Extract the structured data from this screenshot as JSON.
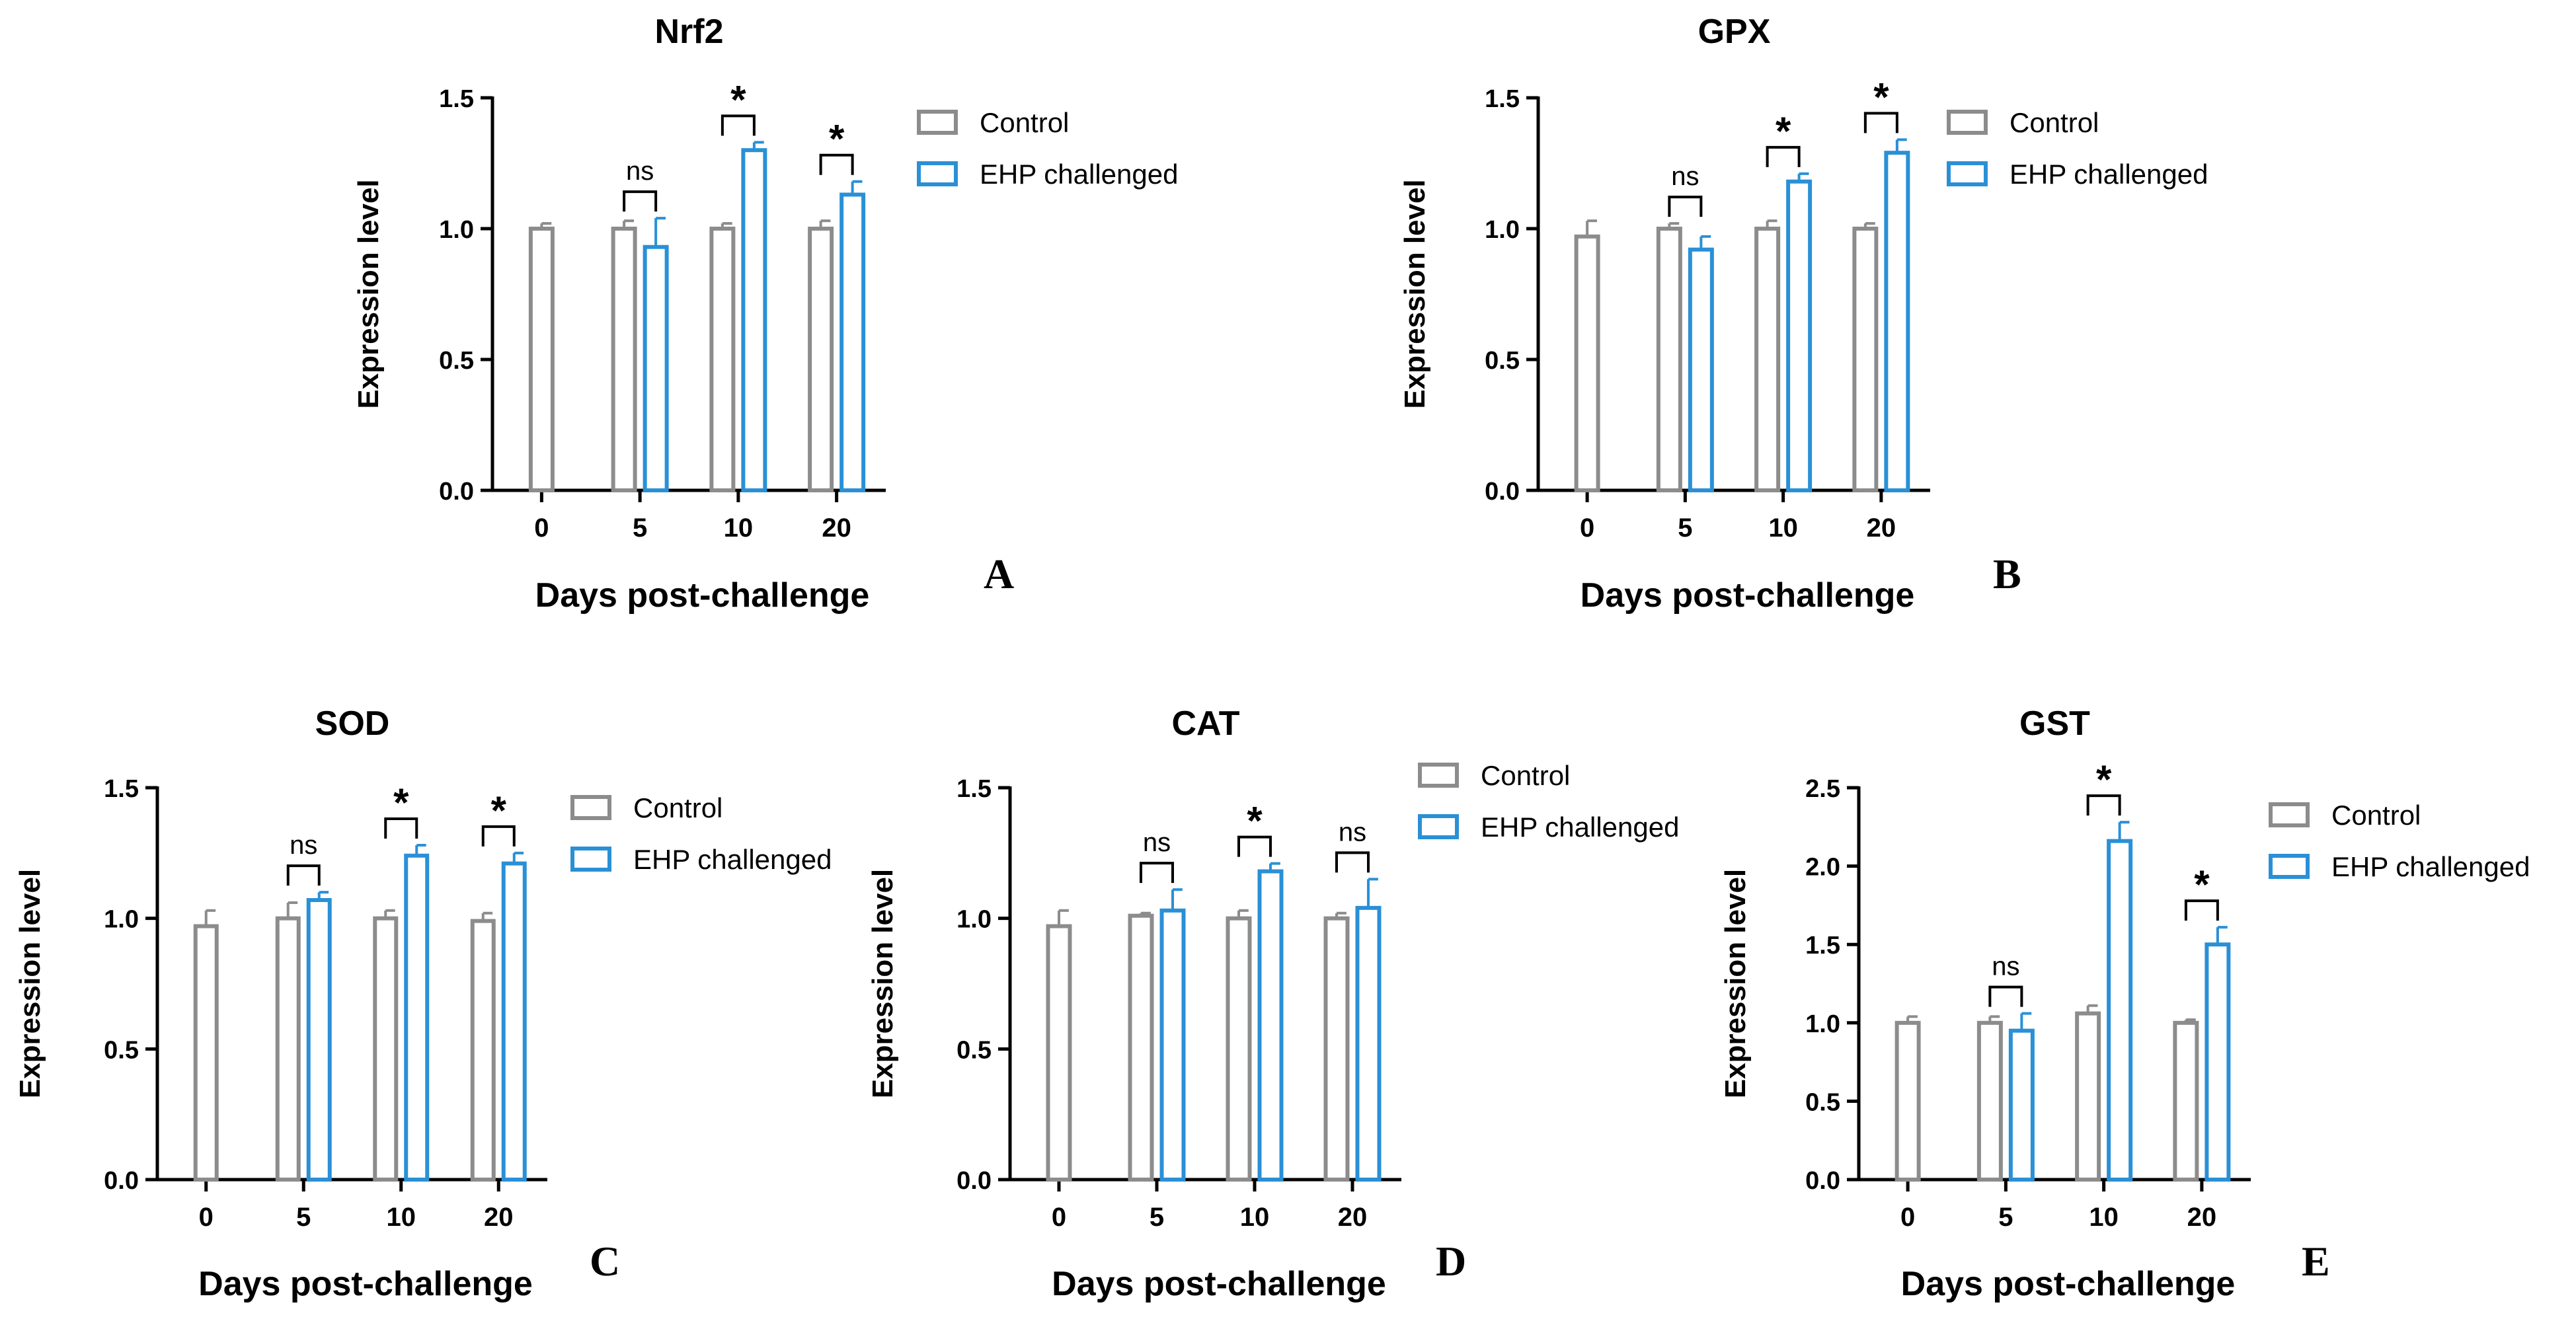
{
  "colors": {
    "control": "#8c8c8c",
    "ehp": "#2a90d6",
    "axis": "#000000",
    "background": "#ffffff"
  },
  "chart_data": [
    {
      "type": "bar",
      "title": "Nrf2",
      "panel_label": "A",
      "xlabel": "Days post-challenge",
      "ylabel": "Expression level",
      "ylim": [
        0,
        1.5
      ],
      "yticks": [
        "0.0",
        "0.5",
        "1.0",
        "1.5"
      ],
      "categories": [
        "0",
        "5",
        "10",
        "20"
      ],
      "legend": [
        "Control",
        "EHP challenged"
      ],
      "series": [
        {
          "name": "Control",
          "values": [
            1.0,
            1.0,
            1.0,
            1.0
          ],
          "errors": [
            0.02,
            0.03,
            0.02,
            0.03
          ]
        },
        {
          "name": "EHP challenged",
          "values": [
            null,
            0.93,
            1.3,
            1.13
          ],
          "errors": [
            null,
            0.11,
            0.03,
            0.05
          ]
        }
      ],
      "significance": [
        {
          "category": "5",
          "label": "ns"
        },
        {
          "category": "10",
          "label": "*"
        },
        {
          "category": "20",
          "label": "*"
        }
      ]
    },
    {
      "type": "bar",
      "title": "GPX",
      "panel_label": "B",
      "xlabel": "Days post-challenge",
      "ylabel": "Expression level",
      "ylim": [
        0,
        1.5
      ],
      "yticks": [
        "0.0",
        "0.5",
        "1.0",
        "1.5"
      ],
      "categories": [
        "0",
        "5",
        "10",
        "20"
      ],
      "legend": [
        "Control",
        "EHP challenged"
      ],
      "series": [
        {
          "name": "Control",
          "values": [
            0.97,
            1.0,
            1.0,
            1.0
          ],
          "errors": [
            0.06,
            0.02,
            0.03,
            0.02
          ]
        },
        {
          "name": "EHP challenged",
          "values": [
            null,
            0.92,
            1.18,
            1.29
          ],
          "errors": [
            null,
            0.05,
            0.03,
            0.05
          ]
        }
      ],
      "significance": [
        {
          "category": "5",
          "label": "ns"
        },
        {
          "category": "10",
          "label": "*"
        },
        {
          "category": "20",
          "label": "*"
        }
      ]
    },
    {
      "type": "bar",
      "title": "SOD",
      "panel_label": "C",
      "xlabel": "Days post-challenge",
      "ylabel": "Expression level",
      "ylim": [
        0,
        1.5
      ],
      "yticks": [
        "0.0",
        "0.5",
        "1.0",
        "1.5"
      ],
      "categories": [
        "0",
        "5",
        "10",
        "20"
      ],
      "legend": [
        "Control",
        "EHP challenged"
      ],
      "series": [
        {
          "name": "Control",
          "values": [
            0.97,
            1.0,
            1.0,
            0.99
          ],
          "errors": [
            0.06,
            0.06,
            0.03,
            0.03
          ]
        },
        {
          "name": "EHP challenged",
          "values": [
            null,
            1.07,
            1.24,
            1.21
          ],
          "errors": [
            null,
            0.03,
            0.04,
            0.04
          ]
        }
      ],
      "significance": [
        {
          "category": "5",
          "label": "ns"
        },
        {
          "category": "10",
          "label": "*"
        },
        {
          "category": "20",
          "label": "*"
        }
      ]
    },
    {
      "type": "bar",
      "title": "CAT",
      "panel_label": "D",
      "xlabel": "Days post-challenge",
      "ylabel": "Expression level",
      "ylim": [
        0,
        1.5
      ],
      "yticks": [
        "0.0",
        "0.5",
        "1.0",
        "1.5"
      ],
      "categories": [
        "0",
        "5",
        "10",
        "20"
      ],
      "legend": [
        "Control",
        "EHP challenged"
      ],
      "series": [
        {
          "name": "Control",
          "values": [
            0.97,
            1.01,
            1.0,
            1.0
          ],
          "errors": [
            0.06,
            0.01,
            0.03,
            0.02
          ]
        },
        {
          "name": "EHP challenged",
          "values": [
            null,
            1.03,
            1.18,
            1.04
          ],
          "errors": [
            null,
            0.08,
            0.03,
            0.11
          ]
        }
      ],
      "significance": [
        {
          "category": "5",
          "label": "ns"
        },
        {
          "category": "10",
          "label": "*"
        },
        {
          "category": "20",
          "label": "ns"
        }
      ]
    },
    {
      "type": "bar",
      "title": "GST",
      "panel_label": "E",
      "xlabel": "Days post-challenge",
      "ylabel": "Expression level",
      "ylim": [
        0,
        2.5
      ],
      "yticks": [
        "0.0",
        "0.5",
        "1.0",
        "1.5",
        "2.0",
        "2.5"
      ],
      "categories": [
        "0",
        "5",
        "10",
        "20"
      ],
      "legend": [
        "Control",
        "EHP challenged"
      ],
      "series": [
        {
          "name": "Control",
          "values": [
            1.0,
            1.0,
            1.06,
            1.0
          ],
          "errors": [
            0.04,
            0.04,
            0.05,
            0.02
          ]
        },
        {
          "name": "EHP challenged",
          "values": [
            null,
            0.95,
            2.16,
            1.5
          ],
          "errors": [
            null,
            0.11,
            0.12,
            0.11
          ]
        }
      ],
      "significance": [
        {
          "category": "5",
          "label": "ns"
        },
        {
          "category": "10",
          "label": "*"
        },
        {
          "category": "20",
          "label": "*"
        }
      ]
    }
  ]
}
